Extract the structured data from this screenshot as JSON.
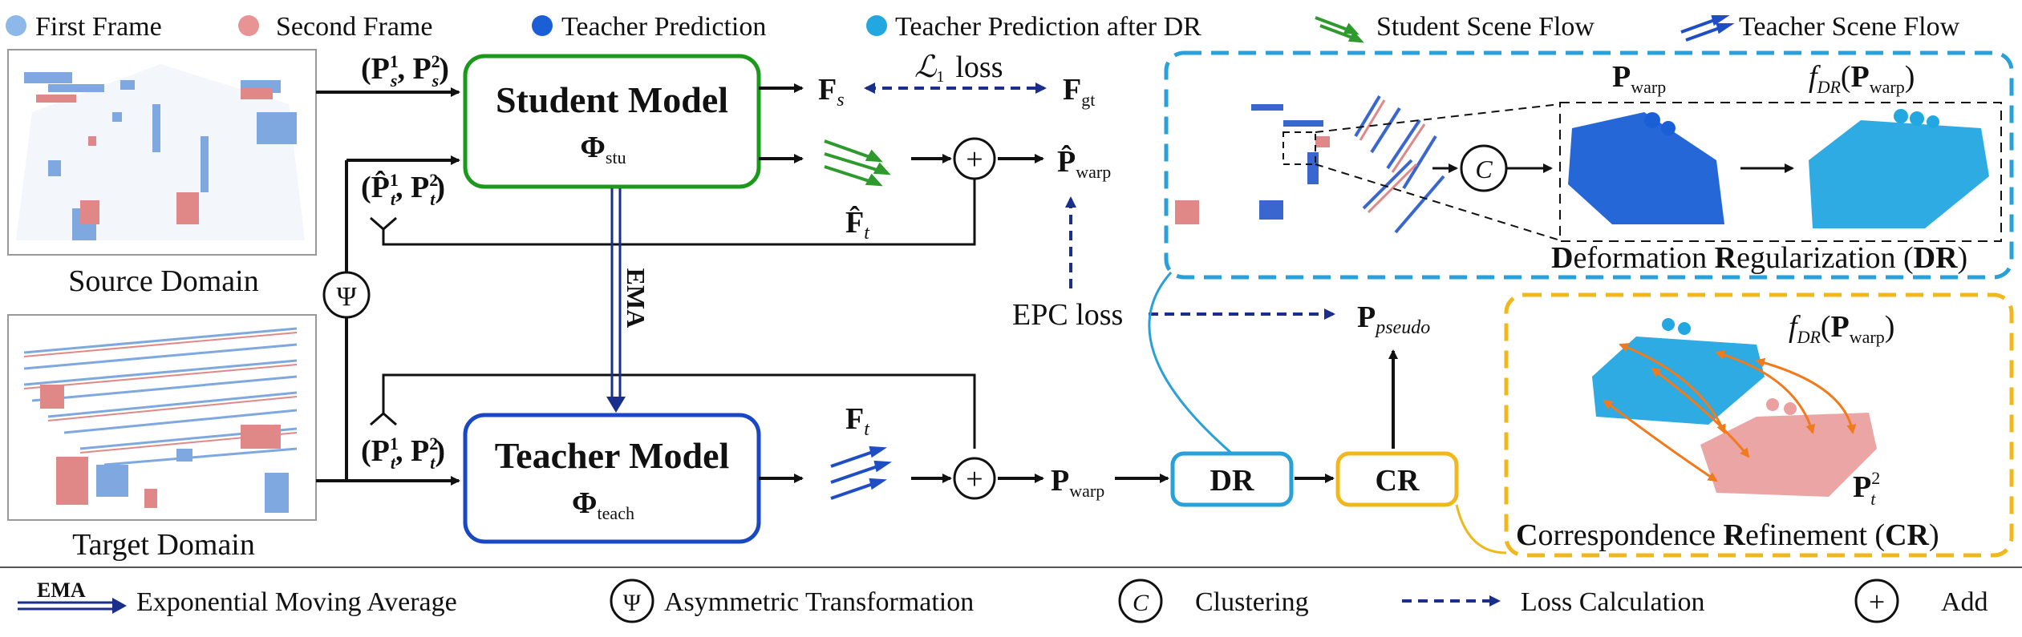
{
  "top_legend": {
    "first_frame": "First Frame",
    "second_frame": "Second Frame",
    "teacher_prediction": "Teacher Prediction",
    "teacher_prediction_dr": "Teacher Prediction after DR",
    "student_flow": "Student Scene Flow",
    "teacher_flow": "Teacher Scene Flow"
  },
  "domains": {
    "source": "Source Domain",
    "target": "Target Domain"
  },
  "models": {
    "student": {
      "title": "Student Model",
      "phi": "Φ",
      "sub": "stu"
    },
    "teacher": {
      "title": "Teacher Model",
      "phi": "Φ",
      "sub": "teach"
    }
  },
  "symbols": {
    "psi": "Ψ",
    "plus": "+",
    "cluster": "C",
    "ema": "EMA"
  },
  "labels": {
    "l1_loss": "loss",
    "l1_symbol": "ℒ",
    "l1_sub": "1",
    "epc_loss": "EPC loss",
    "f_s": "F",
    "f_s_sub": "s",
    "f_gt": "F",
    "f_gt_sub": "gt",
    "f_t": "F",
    "f_t_sub": "t",
    "p_warp": "P",
    "p_warp_sub": "warp",
    "p_pseudo": "P",
    "p_pseudo_sub": "pseudo",
    "input_student": "(P",
    "input_teacher_hat": "(P̂",
    "input_teacher": "(P",
    "fdr": "f",
    "fdr_sub": "DR",
    "p_t2": "P"
  },
  "modules": {
    "dr": "DR",
    "cr": "CR"
  },
  "panels": {
    "dr_caption_parts": [
      "D",
      "eformation ",
      "R",
      "egularization (",
      "DR",
      ")"
    ],
    "cr_caption_parts": [
      "C",
      "orrespondence ",
      "R",
      "efinement (",
      "CR",
      ")"
    ]
  },
  "bottom_legend": {
    "ema_label": "EMA",
    "ema": "Exponential Moving Average",
    "psi": "Asymmetric Transformation",
    "clustering": "Clustering",
    "loss": "Loss Calculation",
    "add": "Add"
  },
  "colors": {
    "first_frame": "#8fb8ea",
    "second_frame": "#e89494",
    "teacher_pred": "#1a5fd6",
    "teacher_pred_dr": "#22a7e0",
    "student_flow": "#2e9a2e",
    "teacher_flow": "#1f4ec4",
    "student_box": "#1a9a1a",
    "teacher_box": "#1a47c4",
    "dr_panel": "#2aa0d8",
    "cr_panel": "#f0b81c",
    "loss_arrow": "#1a2f8c",
    "orange": "#f07a1c"
  }
}
